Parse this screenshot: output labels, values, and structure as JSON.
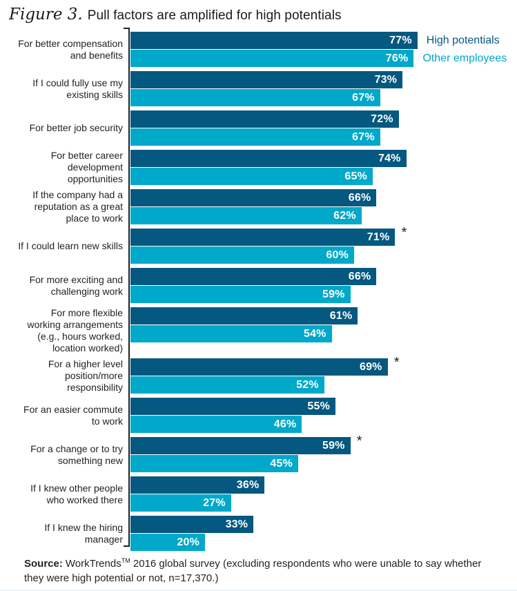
{
  "header": {
    "figure_label": "Figure 3.",
    "title": "Pull factors are amplified for high potentials"
  },
  "significance_marker": "*",
  "chart_data": {
    "type": "bar",
    "orientation": "horizontal",
    "title": "Figure 3. Pull factors are amplified for high potentials",
    "legend_position": "right-of-first-bars",
    "grid": false,
    "xlim": [
      0,
      100
    ],
    "value_suffix": "%",
    "value_labels_shown": true,
    "categories": [
      "For better compensation\nand benefits",
      "If I could fully use my\nexisting skills",
      "For better job security",
      "For better career\ndevelopment\nopportunities",
      "If the company had a\nreputation as a great\nplace to work",
      "If I could learn new skills",
      "For more exciting and\nchallenging work",
      "For more flexible\nworking arrangements\n(e.g., hours worked,\nlocation worked)",
      "For a higher level\nposition/more\nresponsibility",
      "For an easier commute\nto work",
      "For a change or to try\nsomething new",
      "If I knew other people\nwho worked there",
      "If I knew the hiring\nmanager"
    ],
    "series": [
      {
        "name": "High potentials",
        "color": "#05587F",
        "values": [
          77,
          73,
          72,
          74,
          66,
          71,
          66,
          61,
          69,
          55,
          59,
          36,
          33
        ],
        "asterisk_indices": [
          5,
          8,
          10
        ]
      },
      {
        "name": "Other employees",
        "color": "#00A8C9",
        "values": [
          76,
          67,
          67,
          65,
          62,
          60,
          59,
          54,
          52,
          46,
          45,
          27,
          20
        ],
        "asterisk_indices": []
      }
    ]
  },
  "source": {
    "label": "Source:",
    "brand": "WorkTrends",
    "trademark": "TM",
    "text": " 2016 global survey (excluding respondents who were unable to say whether they were high potential or not, n=17,370.)"
  }
}
